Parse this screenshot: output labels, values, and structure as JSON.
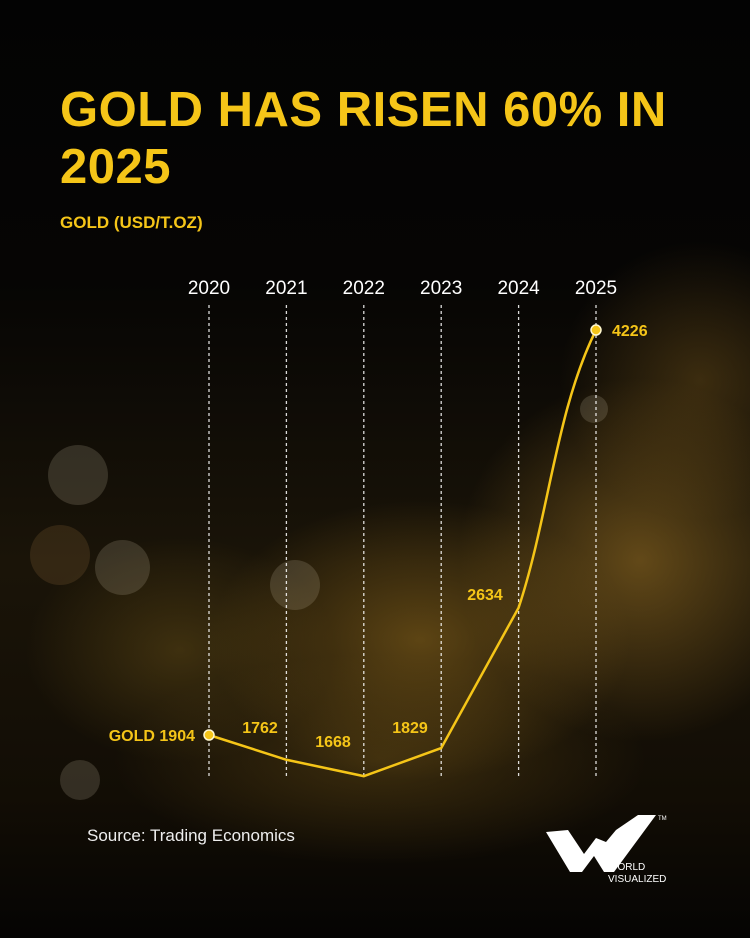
{
  "title": "GOLD HAS RISEN 60% IN 2025",
  "subtitle": "GOLD (USD/T.OZ)",
  "source": "Source: Trading Economics",
  "logo": {
    "text_line1": "WORLD",
    "text_line2": "VISUALIZED",
    "tm": "TM"
  },
  "colors": {
    "accent": "#f5c518",
    "background": "#050403",
    "gridline": "#ffffff"
  },
  "chart_data": {
    "type": "line",
    "title": "GOLD HAS RISEN 60% IN 2025",
    "ylabel": "GOLD (USD/T.OZ)",
    "categories": [
      "2020",
      "2021",
      "2022",
      "2023",
      "2024",
      "2025"
    ],
    "values": [
      1904,
      1762,
      1668,
      1829,
      2634,
      4226
    ],
    "labels": [
      "GOLD 1904",
      "1762",
      "1668",
      "1829",
      "2634",
      "4226"
    ],
    "grid": "vertical dotted lines",
    "markers": [
      "2020",
      "2025"
    ]
  }
}
